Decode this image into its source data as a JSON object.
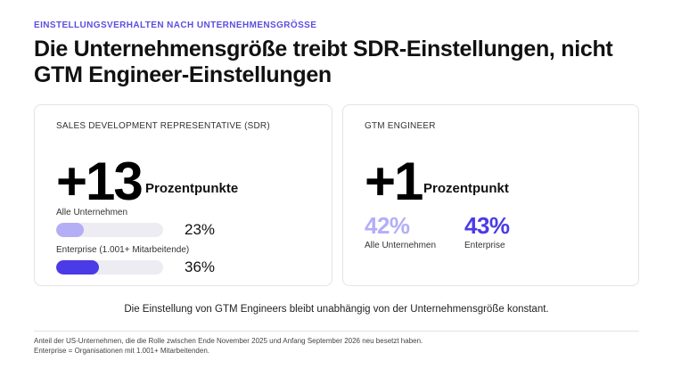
{
  "eyebrow": "EINSTELLUNGSVERHALTEN NACH UNTERNEHMENSGRÖSSE",
  "headline": "Die Unternehmensgröße treibt SDR-Einstellungen, nicht GTM Engineer-Einstellungen",
  "sdr_card": {
    "title": "SALES DEVELOPMENT REPRESENTATIVE (SDR)",
    "big_number": "+13",
    "big_unit": "Prozentpunkte",
    "bars": [
      {
        "label": "Alle Unternehmen",
        "value": "23%",
        "fraction": 0.23,
        "color": "#b4aef7"
      },
      {
        "label": "Enterprise (1.001+ Mitarbeitende)",
        "value": "36%",
        "fraction": 0.36,
        "color": "#4a3be6"
      }
    ]
  },
  "gtm_card": {
    "title": "GTM ENGINEER",
    "big_number": "+1",
    "big_unit": "Prozentpunkt",
    "stats": [
      {
        "value": "42%",
        "label": "Alle Unternehmen",
        "color": "#b4aef7"
      },
      {
        "value": "43%",
        "label": "Enterprise",
        "color": "#4a3be6"
      }
    ]
  },
  "caption": "Die Einstellung von GTM Engineers bleibt unabhängig von der Unternehmensgröße konstant.",
  "footnotes": [
    "Anteil der US-Unternehmen, die die Rolle zwischen Ende November 2025 und Anfang September 2026 neu besetzt haben.",
    "Enterprise = Organisationen mit 1.001+ Mitarbeitenden."
  ]
}
